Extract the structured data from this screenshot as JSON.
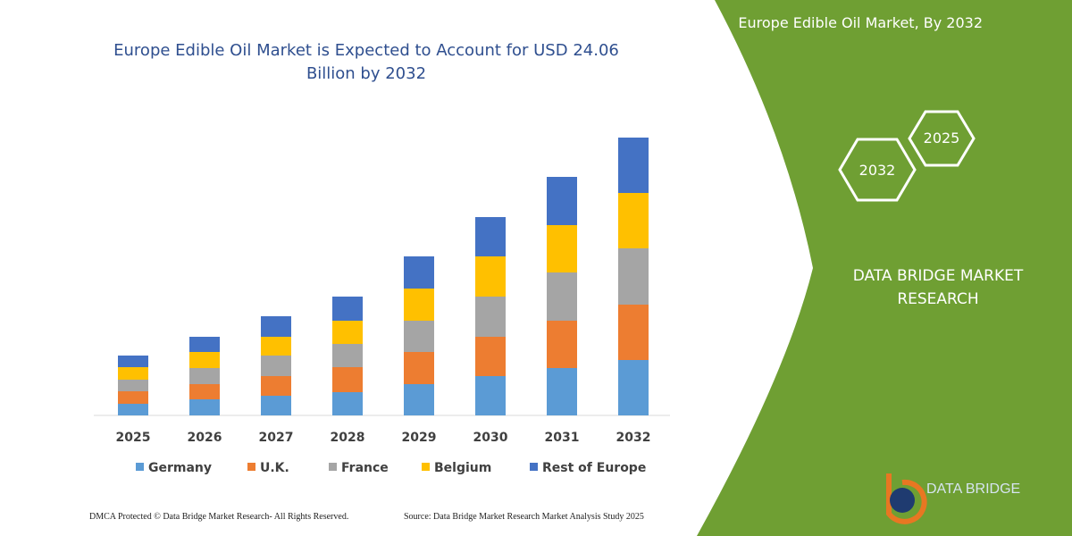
{
  "chart_data": {
    "type": "stacked_bar",
    "title": "Europe Edible Oil Market is Expected to Account for USD 24.06 Billion by 2032",
    "categories": [
      "2025",
      "2026",
      "2027",
      "2028",
      "2029",
      "2030",
      "2031",
      "2032"
    ],
    "series": [
      {
        "name": "Germany",
        "color": "#5b9bd5",
        "values": [
          13,
          18,
          22,
          26,
          35,
          44,
          53,
          62
        ]
      },
      {
        "name": "U.K.",
        "color": "#ed7d31",
        "values": [
          14,
          17,
          22,
          28,
          36,
          44,
          53,
          62
        ]
      },
      {
        "name": "France",
        "color": "#a5a5a5",
        "values": [
          13,
          18,
          23,
          26,
          35,
          45,
          54,
          63
        ]
      },
      {
        "name": "Belgium",
        "color": "#ffc000",
        "values": [
          14,
          18,
          21,
          26,
          36,
          45,
          53,
          62
        ]
      },
      {
        "name": "Rest of Europe",
        "color": "#4472c4",
        "values": [
          13,
          17,
          23,
          27,
          36,
          44,
          54,
          62
        ]
      }
    ],
    "ylim": [
      0,
      320
    ],
    "legend": "bottom"
  },
  "panel": {
    "title": "Europe Edible Oil Market, By 2032",
    "hexagons": [
      "2025",
      "2032"
    ],
    "brand": "DATA BRIDGE MARKET RESEARCH",
    "logo": "DATA BRIDGE"
  },
  "footer": {
    "left": "DMCA Protected © Data Bridge Market Research-  All Rights Reserved.",
    "right": "Source: Data Bridge Market Research  Market Analysis Study 2025"
  }
}
